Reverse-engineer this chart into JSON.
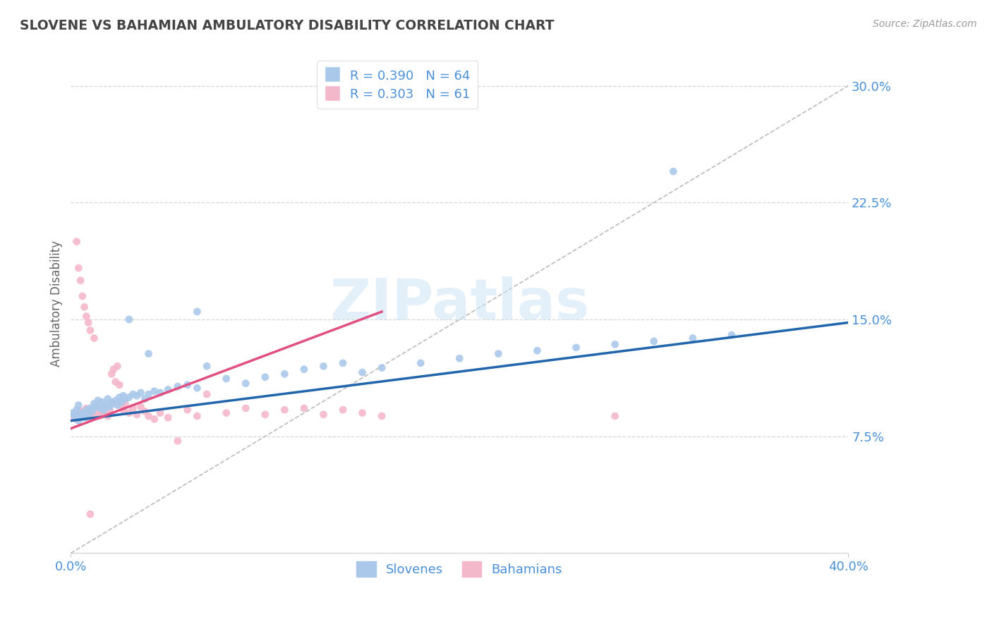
{
  "title": "SLOVENE VS BAHAMIAN AMBULATORY DISABILITY CORRELATION CHART",
  "source": "Source: ZipAtlas.com",
  "ylabel": "Ambulatory Disability",
  "xlim": [
    0.0,
    0.4
  ],
  "ylim": [
    0.0,
    0.32
  ],
  "slovene_color": "#aac9ea",
  "bahamian_color": "#f4b8cb",
  "slovene_line_color": "#2166ac",
  "bahamian_line_color": "#e05080",
  "dashed_line_color": "#bbbbbb",
  "R_slovene": 0.39,
  "N_slovene": 64,
  "R_bahamian": 0.303,
  "N_bahamian": 61,
  "background_color": "#ffffff",
  "grid_color": "#cccccc",
  "title_color": "#444444",
  "axis_label_color": "#666666",
  "tick_color": "#4a90d9",
  "legend_label1": "Slovenes",
  "legend_label2": "Bahamians",
  "slovene_x": [
    0.001,
    0.002,
    0.003,
    0.004,
    0.004,
    0.005,
    0.006,
    0.007,
    0.008,
    0.009,
    0.01,
    0.011,
    0.012,
    0.013,
    0.014,
    0.015,
    0.016,
    0.017,
    0.018,
    0.019,
    0.02,
    0.021,
    0.022,
    0.023,
    0.024,
    0.025,
    0.026,
    0.027,
    0.028,
    0.03,
    0.032,
    0.034,
    0.036,
    0.038,
    0.04,
    0.043,
    0.046,
    0.05,
    0.055,
    0.06,
    0.065,
    0.07,
    0.08,
    0.09,
    0.1,
    0.11,
    0.12,
    0.13,
    0.14,
    0.15,
    0.16,
    0.18,
    0.2,
    0.22,
    0.24,
    0.26,
    0.28,
    0.3,
    0.32,
    0.34,
    0.03,
    0.04,
    0.065,
    0.31
  ],
  "slovene_y": [
    0.09,
    0.088,
    0.092,
    0.085,
    0.095,
    0.088,
    0.09,
    0.087,
    0.092,
    0.089,
    0.093,
    0.091,
    0.096,
    0.094,
    0.098,
    0.093,
    0.097,
    0.092,
    0.095,
    0.099,
    0.094,
    0.097,
    0.096,
    0.098,
    0.095,
    0.1,
    0.097,
    0.101,
    0.099,
    0.1,
    0.102,
    0.101,
    0.103,
    0.099,
    0.102,
    0.104,
    0.103,
    0.105,
    0.107,
    0.108,
    0.106,
    0.12,
    0.112,
    0.109,
    0.113,
    0.115,
    0.118,
    0.12,
    0.122,
    0.116,
    0.119,
    0.122,
    0.125,
    0.128,
    0.13,
    0.132,
    0.134,
    0.136,
    0.138,
    0.14,
    0.15,
    0.128,
    0.155,
    0.245
  ],
  "bahamian_x": [
    0.001,
    0.002,
    0.003,
    0.004,
    0.005,
    0.006,
    0.007,
    0.008,
    0.009,
    0.01,
    0.011,
    0.012,
    0.013,
    0.014,
    0.015,
    0.016,
    0.017,
    0.018,
    0.019,
    0.02,
    0.021,
    0.022,
    0.023,
    0.024,
    0.025,
    0.026,
    0.027,
    0.028,
    0.03,
    0.032,
    0.034,
    0.036,
    0.038,
    0.04,
    0.043,
    0.046,
    0.05,
    0.055,
    0.06,
    0.065,
    0.07,
    0.08,
    0.09,
    0.1,
    0.11,
    0.12,
    0.13,
    0.14,
    0.15,
    0.16,
    0.003,
    0.004,
    0.005,
    0.006,
    0.007,
    0.008,
    0.009,
    0.01,
    0.012,
    0.28,
    0.01
  ],
  "bahamian_y": [
    0.088,
    0.09,
    0.086,
    0.092,
    0.087,
    0.091,
    0.088,
    0.093,
    0.087,
    0.09,
    0.092,
    0.089,
    0.094,
    0.091,
    0.088,
    0.093,
    0.09,
    0.094,
    0.088,
    0.092,
    0.115,
    0.118,
    0.11,
    0.12,
    0.108,
    0.095,
    0.092,
    0.096,
    0.09,
    0.093,
    0.089,
    0.094,
    0.091,
    0.088,
    0.086,
    0.09,
    0.087,
    0.072,
    0.092,
    0.088,
    0.102,
    0.09,
    0.093,
    0.089,
    0.092,
    0.093,
    0.089,
    0.092,
    0.09,
    0.088,
    0.2,
    0.183,
    0.175,
    0.165,
    0.158,
    0.152,
    0.148,
    0.143,
    0.138,
    0.088,
    0.025
  ]
}
